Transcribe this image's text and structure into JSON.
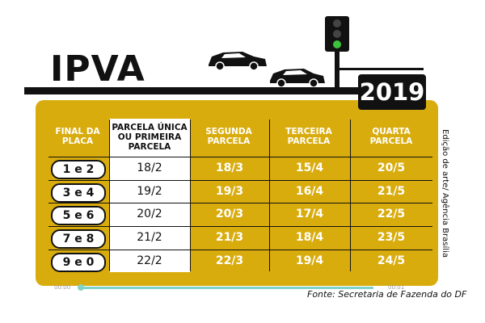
{
  "header": {
    "title": "IPVA",
    "year": "2019"
  },
  "columns": {
    "final_placa": "FINAL DA PLACA",
    "parcela_unica": "PARCELA ÚNICA OU PRIMEIRA PARCELA",
    "segunda": "SEGUNDA PARCELA",
    "terceira": "TERCEIRA PARCELA",
    "quarta": "QUARTA PARCELA"
  },
  "rows": [
    {
      "final": "1 e 2",
      "unica": "18/2",
      "segunda": "18/3",
      "terceira": "15/4",
      "quarta": "20/5"
    },
    {
      "final": "3 e 4",
      "unica": "19/2",
      "segunda": "19/3",
      "terceira": "16/4",
      "quarta": "21/5"
    },
    {
      "final": "5 e 6",
      "unica": "20/2",
      "segunda": "20/3",
      "terceira": "17/4",
      "quarta": "22/5"
    },
    {
      "final": "7 e 8",
      "unica": "21/2",
      "segunda": "21/3",
      "terceira": "18/4",
      "quarta": "23/5"
    },
    {
      "final": "9 e 0",
      "unica": "22/2",
      "segunda": "22/3",
      "terceira": "19/4",
      "quarta": "24/5"
    }
  ],
  "credit": "Edição de arte/ Agência Brasília",
  "source": "Fonte: Secretaria de Fazenda do DF",
  "player": {
    "time_start": "00:00",
    "time_end": "00:01"
  },
  "colors": {
    "panel": "#d9ac0e",
    "ink": "#111111",
    "progress": "#7fd3c9",
    "traffic_light_green": "#3cc23c"
  }
}
